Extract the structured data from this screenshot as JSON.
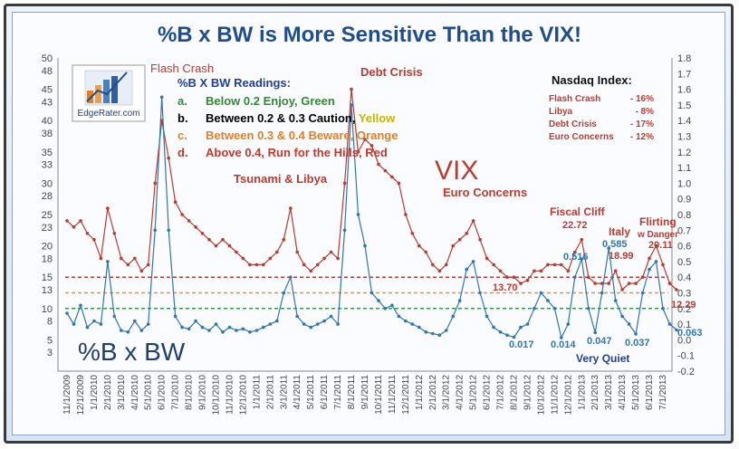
{
  "chart_data": {
    "type": "line",
    "title": "%B x BW is More Sensitive Than the VIX!",
    "left_axis": {
      "min": 0,
      "max": 50,
      "ticks": [
        3,
        5,
        8,
        10,
        13,
        15,
        18,
        20,
        23,
        25,
        28,
        30,
        33,
        35,
        38,
        40,
        43,
        45,
        48,
        50
      ]
    },
    "right_axis": {
      "min": -0.2,
      "max": 1.8,
      "ticks": [
        "-0.2",
        "-0.1",
        "0.0",
        "0.1",
        "0.2",
        "0.3",
        "0.4",
        "0.5",
        "0.6",
        "0.7",
        "0.8",
        "0.9",
        "1.0",
        "1.1",
        "1.2",
        "1.3",
        "1.4",
        "1.5",
        "1.6",
        "1.7",
        "1.8"
      ]
    },
    "x_ticks": [
      "11/1/2009",
      "12/1/2009",
      "1/1/2010",
      "2/1/2010",
      "3/1/2010",
      "4/1/2010",
      "5/1/2010",
      "6/1/2010",
      "7/1/2010",
      "8/1/2010",
      "9/1/2010",
      "10/1/2010",
      "11/1/2010",
      "12/1/2010",
      "1/1/2011",
      "2/1/2011",
      "3/1/2011",
      "4/1/2011",
      "5/1/2011",
      "6/1/2011",
      "7/1/2011",
      "8/1/2011",
      "9/1/2011",
      "10/1/2011",
      "11/1/2011",
      "12/1/2011",
      "1/1/2012",
      "2/1/2012",
      "3/1/2012",
      "4/1/2012",
      "5/1/2012",
      "6/1/2012",
      "7/1/2012",
      "8/1/2012",
      "9/1/2012",
      "10/1/2012",
      "11/1/2012",
      "12/1/2012",
      "1/1/2013",
      "2/1/2013",
      "3/1/2013",
      "4/1/2013",
      "5/1/2013",
      "6/1/2013",
      "7/1/2013"
    ],
    "series": [
      {
        "name": "VIX",
        "color": "#c0392b",
        "axis": "left",
        "points": [
          [
            0,
            24
          ],
          [
            0.5,
            23
          ],
          [
            1,
            24
          ],
          [
            1.5,
            22
          ],
          [
            2,
            21
          ],
          [
            2.5,
            18
          ],
          [
            3,
            26
          ],
          [
            3.5,
            22
          ],
          [
            4,
            18
          ],
          [
            4.5,
            17
          ],
          [
            5,
            18
          ],
          [
            5.5,
            16
          ],
          [
            6,
            17
          ],
          [
            6.5,
            30
          ],
          [
            7,
            40
          ],
          [
            7.5,
            34
          ],
          [
            8,
            27
          ],
          [
            8.5,
            25
          ],
          [
            9,
            24
          ],
          [
            9.5,
            23
          ],
          [
            10,
            22
          ],
          [
            10.5,
            21
          ],
          [
            11,
            20
          ],
          [
            11.5,
            21
          ],
          [
            12,
            20
          ],
          [
            12.5,
            19
          ],
          [
            13,
            18
          ],
          [
            13.5,
            17
          ],
          [
            14,
            17
          ],
          [
            14.5,
            17
          ],
          [
            15,
            18
          ],
          [
            15.5,
            19
          ],
          [
            16,
            21
          ],
          [
            16.5,
            26
          ],
          [
            17,
            19
          ],
          [
            17.5,
            17
          ],
          [
            18,
            16
          ],
          [
            18.5,
            17
          ],
          [
            19,
            18
          ],
          [
            19.5,
            19
          ],
          [
            20,
            18
          ],
          [
            20.5,
            30
          ],
          [
            21,
            45
          ],
          [
            21.5,
            35
          ],
          [
            22,
            37
          ],
          [
            22.5,
            36
          ],
          [
            23,
            33
          ],
          [
            23.5,
            32
          ],
          [
            24,
            31
          ],
          [
            24.5,
            30
          ],
          [
            25,
            25
          ],
          [
            25.5,
            22
          ],
          [
            26,
            20
          ],
          [
            26.5,
            19
          ],
          [
            27,
            17
          ],
          [
            27.5,
            16
          ],
          [
            28,
            17
          ],
          [
            28.5,
            20
          ],
          [
            29,
            21
          ],
          [
            29.5,
            22
          ],
          [
            30,
            24
          ],
          [
            30.5,
            21
          ],
          [
            31,
            18
          ],
          [
            31.5,
            17
          ],
          [
            32,
            16
          ],
          [
            32.5,
            15
          ],
          [
            33,
            15
          ],
          [
            33.5,
            14
          ],
          [
            34,
            14.5
          ],
          [
            34.5,
            16
          ],
          [
            35,
            16
          ],
          [
            35.5,
            17
          ],
          [
            36,
            17
          ],
          [
            36.5,
            17
          ],
          [
            37,
            16
          ],
          [
            37.5,
            19
          ],
          [
            38,
            21
          ],
          [
            38.5,
            15
          ],
          [
            39,
            14
          ],
          [
            39.5,
            14
          ],
          [
            40,
            14
          ],
          [
            40.5,
            16
          ],
          [
            41,
            13
          ],
          [
            41.5,
            14
          ],
          [
            42,
            14
          ],
          [
            42.5,
            15
          ],
          [
            43,
            18
          ],
          [
            43.5,
            20
          ],
          [
            44,
            17
          ],
          [
            44.5,
            14
          ],
          [
            45,
            13
          ]
        ]
      },
      {
        "name": "%B x BW",
        "color": "#2e75b6",
        "axis": "right",
        "points": [
          [
            0,
            0.17
          ],
          [
            0.5,
            0.1
          ],
          [
            1,
            0.22
          ],
          [
            1.5,
            0.08
          ],
          [
            2,
            0.12
          ],
          [
            2.5,
            0.1
          ],
          [
            3,
            0.5
          ],
          [
            3.5,
            0.15
          ],
          [
            4,
            0.06
          ],
          [
            4.5,
            0.05
          ],
          [
            5,
            0.12
          ],
          [
            5.5,
            0.06
          ],
          [
            6,
            0.1
          ],
          [
            6.5,
            0.7
          ],
          [
            7,
            1.55
          ],
          [
            7.5,
            0.7
          ],
          [
            8,
            0.15
          ],
          [
            8.5,
            0.08
          ],
          [
            9,
            0.07
          ],
          [
            9.5,
            0.12
          ],
          [
            10,
            0.08
          ],
          [
            10.5,
            0.06
          ],
          [
            11,
            0.1
          ],
          [
            11.5,
            0.05
          ],
          [
            12,
            0.08
          ],
          [
            12.5,
            0.06
          ],
          [
            13,
            0.07
          ],
          [
            13.5,
            0.05
          ],
          [
            14,
            0.06
          ],
          [
            14.5,
            0.08
          ],
          [
            15,
            0.1
          ],
          [
            15.5,
            0.12
          ],
          [
            16,
            0.3
          ],
          [
            16.5,
            0.4
          ],
          [
            17,
            0.15
          ],
          [
            17.5,
            0.1
          ],
          [
            18,
            0.08
          ],
          [
            18.5,
            0.1
          ],
          [
            19,
            0.12
          ],
          [
            19.5,
            0.15
          ],
          [
            20,
            0.1
          ],
          [
            20.5,
            0.7
          ],
          [
            21,
            1.5
          ],
          [
            21.5,
            0.8
          ],
          [
            22,
            0.6
          ],
          [
            22.5,
            0.3
          ],
          [
            23,
            0.25
          ],
          [
            23.5,
            0.2
          ],
          [
            24,
            0.22
          ],
          [
            24.5,
            0.15
          ],
          [
            25,
            0.12
          ],
          [
            25.5,
            0.1
          ],
          [
            26,
            0.08
          ],
          [
            26.5,
            0.05
          ],
          [
            27,
            0.04
          ],
          [
            27.5,
            0.03
          ],
          [
            28,
            0.06
          ],
          [
            28.5,
            0.15
          ],
          [
            29,
            0.25
          ],
          [
            29.5,
            0.45
          ],
          [
            30,
            0.5
          ],
          [
            30.5,
            0.3
          ],
          [
            31,
            0.15
          ],
          [
            31.5,
            0.08
          ],
          [
            32,
            0.05
          ],
          [
            32.5,
            0.03
          ],
          [
            33,
            0.017
          ],
          [
            33.5,
            0.08
          ],
          [
            34,
            0.1
          ],
          [
            34.5,
            0.2
          ],
          [
            35,
            0.3
          ],
          [
            35.5,
            0.25
          ],
          [
            36,
            0.2
          ],
          [
            36.5,
            0.014
          ],
          [
            37,
            0.1
          ],
          [
            37.5,
            0.4
          ],
          [
            38,
            0.516
          ],
          [
            38.5,
            0.2
          ],
          [
            39,
            0.047
          ],
          [
            39.5,
            0.3
          ],
          [
            40,
            0.585
          ],
          [
            40.5,
            0.25
          ],
          [
            41,
            0.15
          ],
          [
            41.5,
            0.1
          ],
          [
            42,
            0.037
          ],
          [
            42.5,
            0.3
          ],
          [
            43,
            0.45
          ],
          [
            43.5,
            0.5
          ],
          [
            44,
            0.2
          ],
          [
            44.5,
            0.1
          ],
          [
            45,
            0.063
          ]
        ]
      }
    ],
    "threshold_lines": [
      {
        "value": 0.2,
        "color": "#2ea043"
      },
      {
        "value": 0.3,
        "color": "#e69138"
      },
      {
        "value": 0.4,
        "color": "#c0392b"
      }
    ],
    "grid": false
  },
  "legend_box": {
    "heading": "%B X BW Readings:",
    "items": [
      {
        "letter": "a.",
        "text": "Below 0.2 Enjoy, Green",
        "color": "#2e8b2e"
      },
      {
        "letter": "b.",
        "text": "Between 0.2 & 0.3 Caution, Yellow",
        "color": "#000000",
        "highlight": "Yellow",
        "highlight_color": "#c8b400"
      },
      {
        "letter": "c.",
        "text": "Between 0.3 & 0.4 Beware, Orange",
        "color": "#e67e22"
      },
      {
        "letter": "d.",
        "text": "Above 0.4, Run for the Hills, Red",
        "color": "#c0392b"
      }
    ]
  },
  "nasdaq_box": {
    "title": "Nasdaq Index:",
    "rows": [
      {
        "label": "Flash Crash",
        "value": "- 16%"
      },
      {
        "label": "Libya",
        "value": "- 8%"
      },
      {
        "label": "Debt Crisis",
        "value": "- 17%"
      },
      {
        "label": "Euro Concerns",
        "value": "- 12%"
      }
    ]
  },
  "annotations": {
    "flash_crash": "Flash Crash",
    "debt_crisis": "Debt Crisis",
    "tsunami": "Tsunami & Libya",
    "vix": "VIX",
    "euro": "Euro Concerns",
    "fiscal_cliff": "Fiscal Cliff",
    "fiscal_val": "22.72",
    "italy": "Italy",
    "italy_val": "18.99",
    "flirting1": "Flirting",
    "flirting2": "w Danger",
    "flirting_val": "20.11",
    "v516": "0.516",
    "v585": "0.585",
    "v1370": "13.70",
    "v1229": "12.29",
    "v063": "0.063",
    "v017": "0.017",
    "v014": "0.014",
    "v047": "0.047",
    "v037": "0.037",
    "very_quiet": "Very Quiet",
    "pctb": "%B x BW",
    "logo": "EdgeRater.com"
  }
}
